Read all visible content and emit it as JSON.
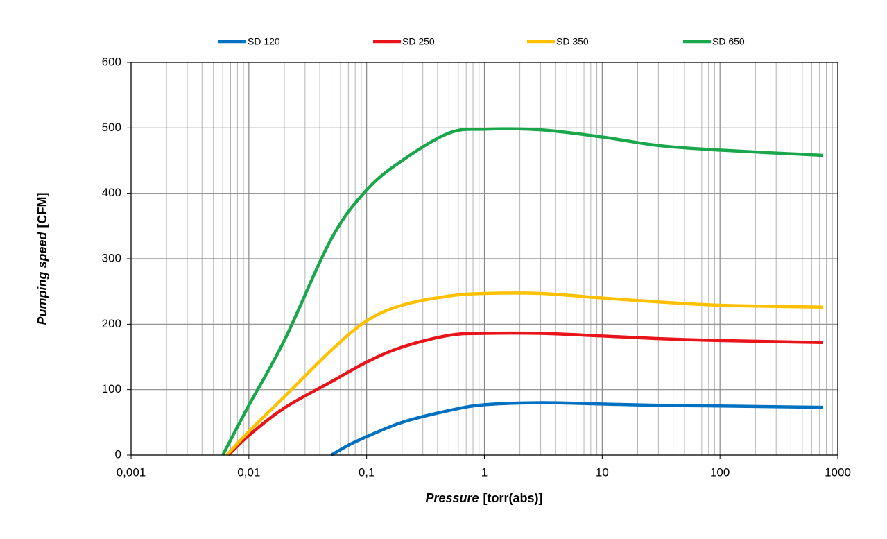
{
  "chart_data": {
    "type": "line",
    "log_x": true,
    "grid": true,
    "minor_grid": true,
    "legend": "top",
    "xlabel": [
      "Pressure",
      "[torr(abs)]"
    ],
    "ylabel": [
      "Pumping speed",
      "[CFM]"
    ],
    "xlim": [
      0.001,
      1000
    ],
    "xticks": [
      {
        "value": 0.001,
        "label": "0,001"
      },
      {
        "value": 0.01,
        "label": "0,01"
      },
      {
        "value": 0.1,
        "label": "0,1"
      },
      1,
      10,
      100,
      1000
    ],
    "ylim": [
      0,
      600
    ],
    "yticks": [
      0,
      100,
      200,
      300,
      400,
      500,
      600
    ],
    "series": [
      {
        "name": "SD 120",
        "color": "#0070c0",
        "x": [
          0.05,
          0.07,
          0.1,
          0.2,
          0.5,
          1,
          3,
          10,
          30,
          100,
          750
        ],
        "values": [
          0,
          15,
          28,
          50,
          68,
          77,
          80,
          78,
          76,
          75,
          73
        ]
      },
      {
        "name": "SD 250",
        "color": "#e8141a",
        "x": [
          0.0067,
          0.01,
          0.02,
          0.05,
          0.1,
          0.2,
          0.5,
          1,
          3,
          10,
          30,
          100,
          750
        ],
        "values": [
          0,
          30,
          72,
          112,
          142,
          165,
          183,
          186,
          186,
          182,
          178,
          175,
          172
        ]
      },
      {
        "name": "SD 350",
        "color": "#ffc000",
        "x": [
          0.0065,
          0.01,
          0.02,
          0.05,
          0.1,
          0.2,
          0.5,
          1,
          3,
          10,
          30,
          100,
          750
        ],
        "values": [
          0,
          36,
          89,
          160,
          205,
          229,
          243,
          247,
          247,
          240,
          234,
          229,
          226
        ]
      },
      {
        "name": "SD 650",
        "color": "#1aa64b",
        "x": [
          0.006,
          0.01,
          0.02,
          0.05,
          0.1,
          0.2,
          0.5,
          1,
          3,
          10,
          30,
          100,
          750
        ],
        "values": [
          0,
          76,
          175,
          330,
          405,
          450,
          492,
          498,
          497,
          486,
          473,
          466,
          458
        ]
      }
    ]
  }
}
